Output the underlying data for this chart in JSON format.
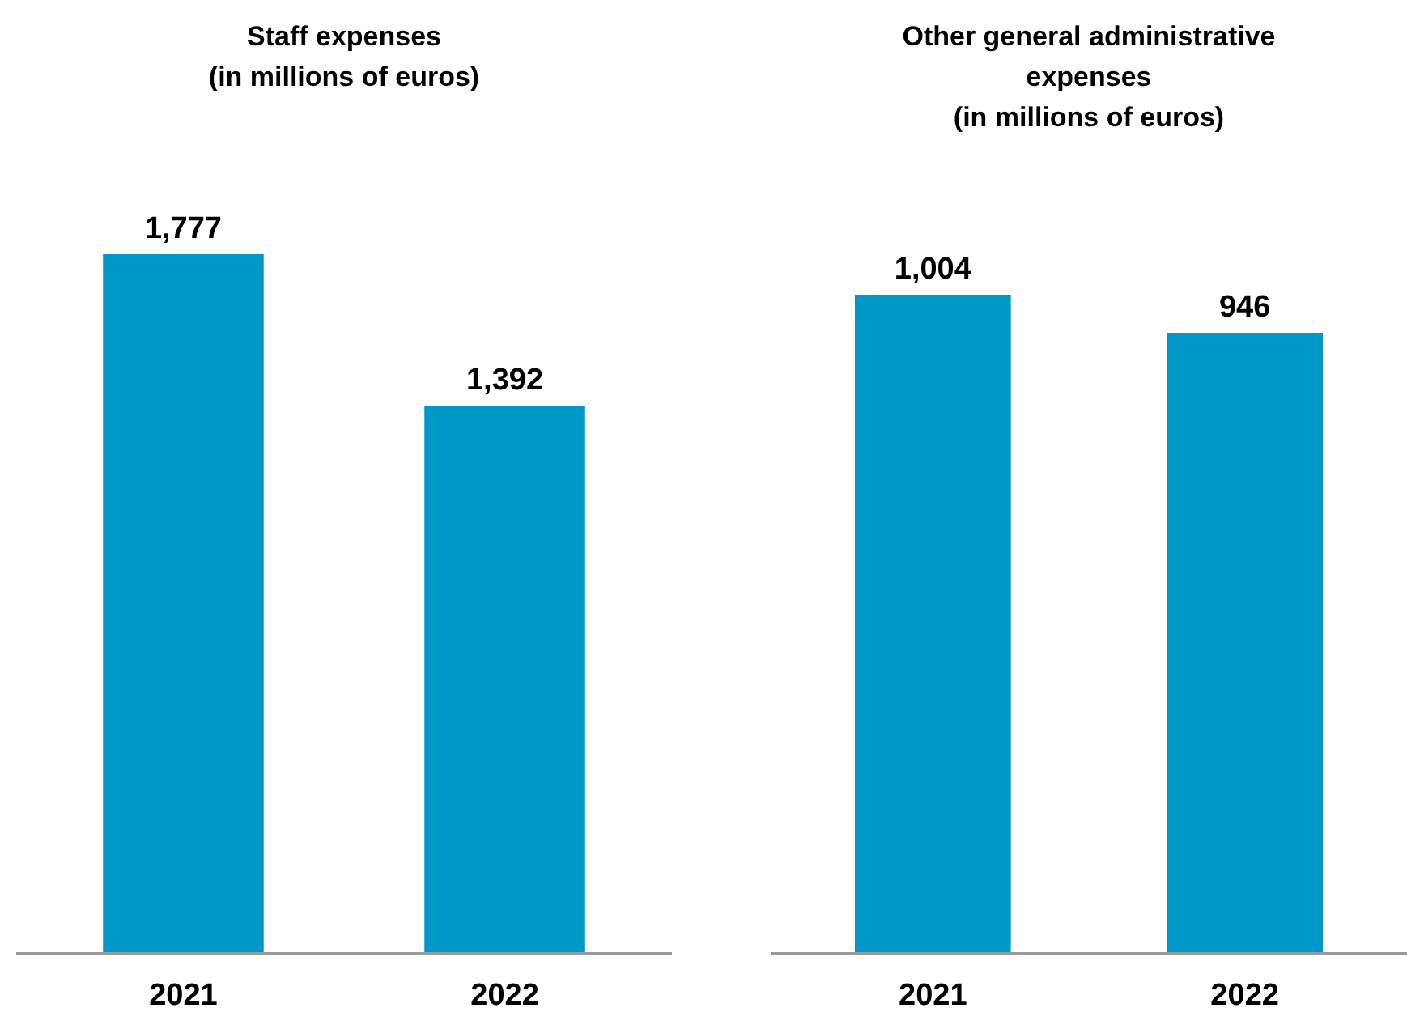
{
  "chart_data": [
    {
      "type": "bar",
      "title": "Staff expenses\n(in millions of euros)",
      "categories": [
        "2021",
        "2022"
      ],
      "values": [
        1777,
        1392
      ],
      "value_labels": [
        "1,777",
        "1,392"
      ],
      "color": "#0097c9"
    },
    {
      "type": "bar",
      "title": "Other general administrative\nexpenses\n(in millions of euros)",
      "categories": [
        "2021",
        "2022"
      ],
      "values": [
        1004,
        946
      ],
      "value_labels": [
        "1,004",
        "946"
      ],
      "color": "#0097c9"
    }
  ]
}
